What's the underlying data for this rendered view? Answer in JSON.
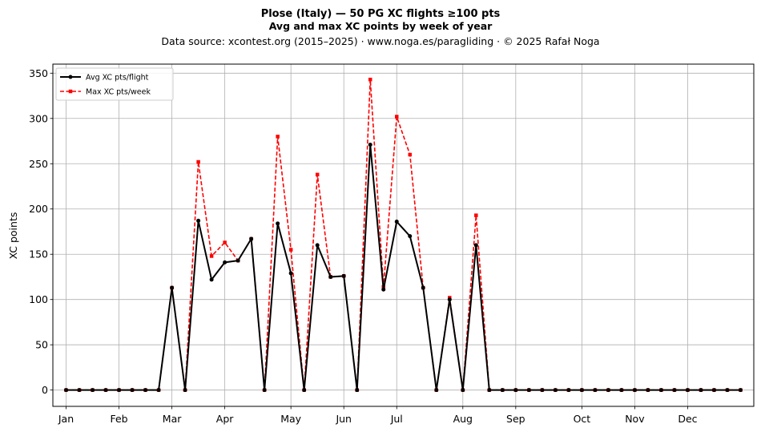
{
  "chart_data": {
    "type": "line",
    "title": "Plose (Italy)  —  50 PG XC flights ≥100 pts",
    "subtitle": "Avg and max XC points by week of year",
    "source": "Data source: xcontest.org (2015–2025)  ·  www.noga.es/paragliding  ·  © 2025 Rafał Noga",
    "ylabel": "XC points",
    "xlabel": "",
    "xlim": [
      0,
      53
    ],
    "ylim": [
      -18,
      360
    ],
    "yticks": [
      0,
      50,
      100,
      150,
      200,
      250,
      300,
      350
    ],
    "xticks": [
      {
        "pos": 1,
        "label": "Jan"
      },
      {
        "pos": 5,
        "label": "Feb"
      },
      {
        "pos": 9,
        "label": "Mar"
      },
      {
        "pos": 13,
        "label": "Apr"
      },
      {
        "pos": 18,
        "label": "May"
      },
      {
        "pos": 22,
        "label": "Jun"
      },
      {
        "pos": 26,
        "label": "Jul"
      },
      {
        "pos": 31,
        "label": "Aug"
      },
      {
        "pos": 35,
        "label": "Sep"
      },
      {
        "pos": 40,
        "label": "Oct"
      },
      {
        "pos": 44,
        "label": "Nov"
      },
      {
        "pos": 48,
        "label": "Dec"
      }
    ],
    "grid": true,
    "legend_position": "top-left",
    "x": [
      1,
      2,
      3,
      4,
      5,
      6,
      7,
      8,
      9,
      10,
      11,
      12,
      13,
      14,
      15,
      16,
      17,
      18,
      19,
      20,
      21,
      22,
      23,
      24,
      25,
      26,
      27,
      28,
      29,
      30,
      31,
      32,
      33,
      34,
      35,
      36,
      37,
      38,
      39,
      40,
      41,
      42,
      43,
      44,
      45,
      46,
      47,
      48,
      49,
      50,
      51,
      52
    ],
    "series": [
      {
        "name": "Avg XC pts/flight",
        "color": "#000000",
        "style": "solid",
        "marker": "circle",
        "values": [
          0,
          0,
          0,
          0,
          0,
          0,
          0,
          0,
          113,
          0,
          187,
          122,
          141,
          143,
          167,
          0,
          184,
          129,
          0,
          160,
          125,
          126,
          0,
          271,
          111,
          186,
          170,
          113,
          0,
          100,
          0,
          160,
          0,
          0,
          0,
          0,
          0,
          0,
          0,
          0,
          0,
          0,
          0,
          0,
          0,
          0,
          0,
          0,
          0,
          0,
          0,
          0
        ]
      },
      {
        "name": "Max XC pts/week",
        "color": "#ff0000",
        "style": "dashed",
        "marker": "square",
        "values": [
          0,
          0,
          0,
          0,
          0,
          0,
          0,
          0,
          113,
          0,
          252,
          148,
          163,
          143,
          167,
          0,
          280,
          155,
          0,
          238,
          125,
          126,
          0,
          343,
          114,
          302,
          260,
          113,
          0,
          102,
          0,
          193,
          0,
          0,
          0,
          0,
          0,
          0,
          0,
          0,
          0,
          0,
          0,
          0,
          0,
          0,
          0,
          0,
          0,
          0,
          0,
          0
        ]
      }
    ]
  }
}
